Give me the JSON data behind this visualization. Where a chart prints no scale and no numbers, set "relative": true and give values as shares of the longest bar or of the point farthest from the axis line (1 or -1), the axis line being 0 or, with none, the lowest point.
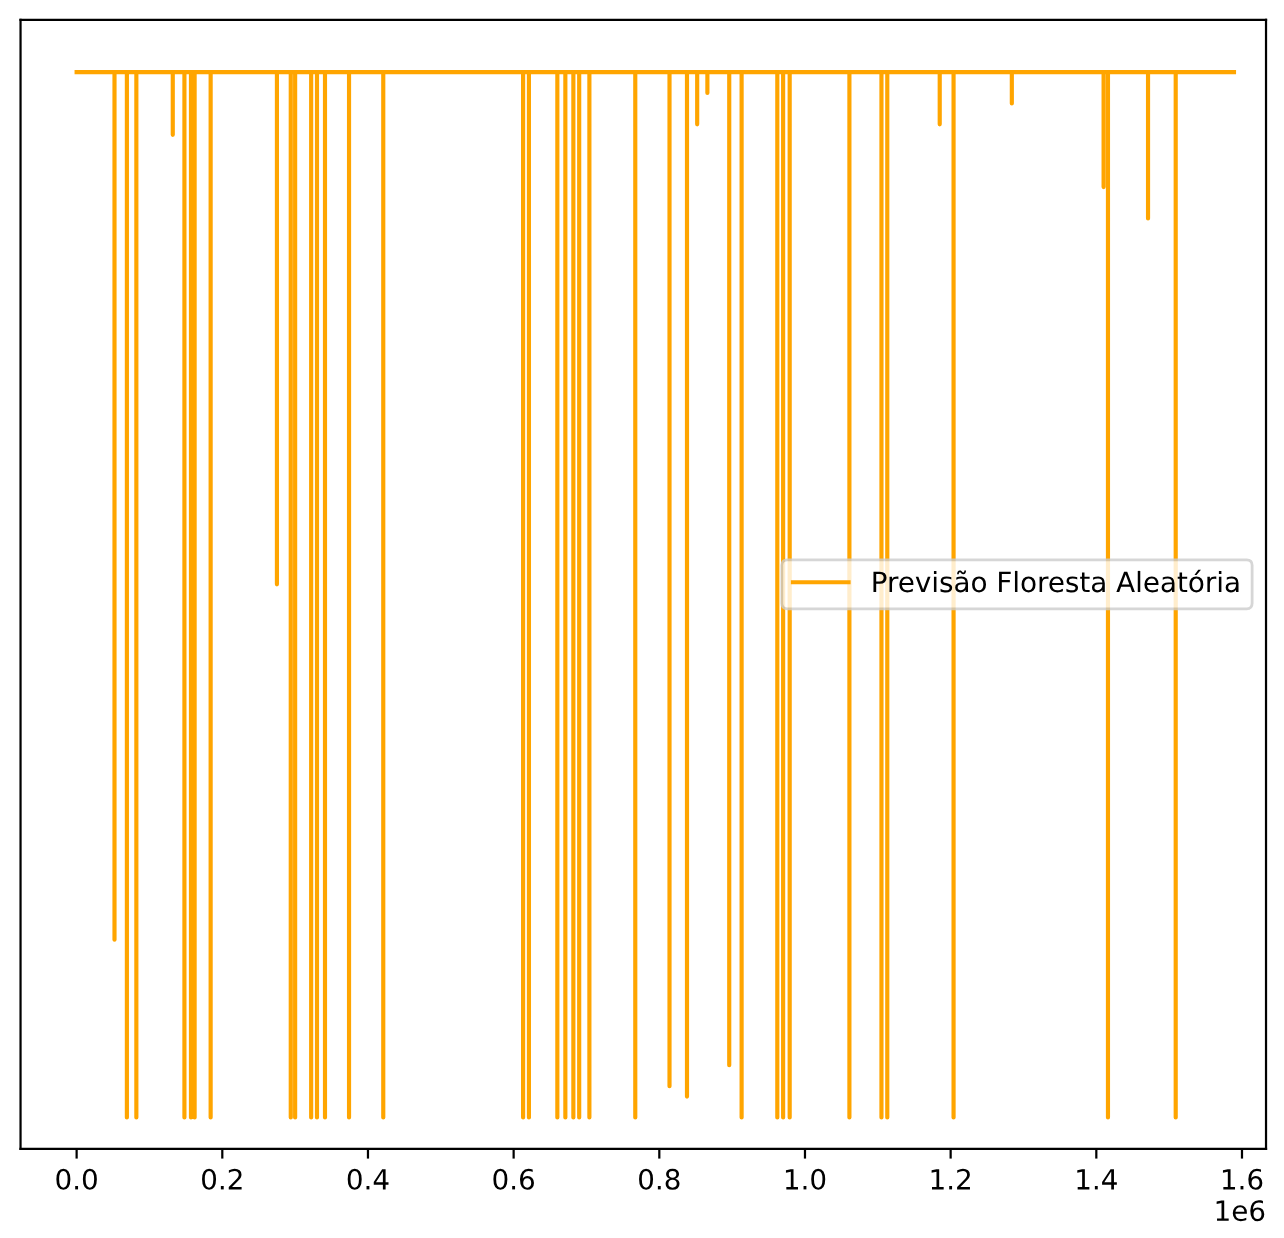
{
  "chart_data": {
    "type": "line",
    "relative": true,
    "xlim": [
      -0.077,
      1.633
    ],
    "xticks": [
      {
        "value": 0,
        "label": "0.0"
      },
      0.2,
      0.4,
      0.6,
      0.8,
      {
        "value": 1,
        "label": "1.0"
      },
      1.2,
      1.4,
      1.6
    ],
    "annotations": [
      "1e6"
    ],
    "legend": "center right",
    "grid": false,
    "series": [
      {
        "name": "Previsão Floresta Aleatória",
        "color": "#ffa500",
        "x": [
          0,
          0.052,
          0.052,
          0.052,
          0.069,
          0.069,
          0.069,
          0.082,
          0.082,
          0.082,
          0.132,
          0.132,
          0.132,
          0.148,
          0.148,
          0.148,
          0.157,
          0.157,
          0.157,
          0.162,
          0.162,
          0.162,
          0.184,
          0.184,
          0.184,
          0.275,
          0.275,
          0.275,
          0.294,
          0.294,
          0.294,
          0.3,
          0.3,
          0.3,
          0.322,
          0.322,
          0.322,
          0.33,
          0.33,
          0.33,
          0.341,
          0.341,
          0.341,
          0.374,
          0.374,
          0.374,
          0.421,
          0.421,
          0.421,
          0.613,
          0.613,
          0.613,
          0.621,
          0.621,
          0.621,
          0.66,
          0.66,
          0.66,
          0.671,
          0.671,
          0.671,
          0.682,
          0.682,
          0.682,
          0.69,
          0.69,
          0.69,
          0.704,
          0.704,
          0.704,
          0.767,
          0.767,
          0.767,
          0.814,
          0.814,
          0.814,
          0.838,
          0.838,
          0.838,
          0.852,
          0.852,
          0.852,
          0.866,
          0.866,
          0.866,
          0.896,
          0.896,
          0.896,
          0.913,
          0.913,
          0.913,
          0.962,
          0.962,
          0.962,
          0.97,
          0.97,
          0.97,
          0.979,
          0.979,
          0.979,
          1.061,
          1.061,
          1.061,
          1.105,
          1.105,
          1.105,
          1.113,
          1.113,
          1.113,
          1.185,
          1.185,
          1.185,
          1.204,
          1.204,
          1.204,
          1.284,
          1.284,
          1.284,
          1.41,
          1.41,
          1.41,
          1.416,
          1.416,
          1.416,
          1.471,
          1.471,
          1.471,
          1.509,
          1.509,
          1.509,
          1.589
        ],
        "values": [
          1,
          1,
          0.17,
          1,
          1,
          0,
          1,
          1,
          0,
          1,
          1,
          0.94,
          1,
          1,
          0,
          1,
          1,
          0,
          1,
          1,
          0,
          1,
          1,
          0,
          1,
          1,
          0.51,
          1,
          1,
          0,
          1,
          1,
          0,
          1,
          1,
          0,
          1,
          1,
          0,
          1,
          1,
          0,
          1,
          1,
          0,
          1,
          1,
          0,
          1,
          1,
          0,
          1,
          1,
          0,
          1,
          1,
          0,
          1,
          1,
          0,
          1,
          1,
          0,
          1,
          1,
          0,
          1,
          1,
          0,
          1,
          1,
          0,
          1,
          1,
          0.03,
          1,
          1,
          0.02,
          1,
          1,
          0.95,
          1,
          1,
          0.98,
          1,
          1,
          0.05,
          1,
          1,
          0,
          1,
          1,
          0,
          1,
          1,
          0,
          1,
          1,
          0,
          1,
          1,
          0,
          1,
          1,
          0,
          1,
          1,
          0,
          1,
          1,
          0.95,
          1,
          1,
          0,
          1,
          1,
          0.97,
          1,
          1,
          0.89,
          1,
          1,
          0,
          1,
          1,
          0.86,
          1,
          1,
          0,
          1,
          1
        ]
      }
    ]
  }
}
